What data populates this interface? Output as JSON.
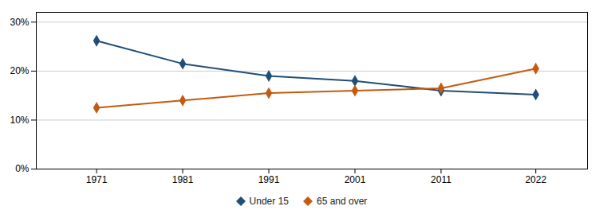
{
  "chart_data": {
    "type": "line",
    "x": [
      1971,
      1981,
      1991,
      2001,
      2011,
      2022
    ],
    "series": [
      {
        "name": "Under 15",
        "color": "#1f4e79",
        "marker": "diamond",
        "values": [
          0.262,
          0.215,
          0.19,
          0.18,
          0.16,
          0.152
        ]
      },
      {
        "name": "65 and over",
        "color": "#c55a11",
        "marker": "diamond",
        "values": [
          0.125,
          0.14,
          0.155,
          0.16,
          0.165,
          0.205
        ]
      }
    ],
    "xlim": [
      1964,
      2028
    ],
    "xticks": [
      1971,
      1981,
      1991,
      2001,
      2011,
      2022
    ],
    "ylim": [
      0,
      0.32
    ],
    "yticks": [
      {
        "value": 0.0,
        "label": "0%"
      },
      {
        "value": 0.1,
        "label": "10%"
      },
      {
        "value": 0.2,
        "label": "20%"
      },
      {
        "value": 0.3,
        "label": "30%"
      }
    ],
    "grid": "y",
    "legend": "bottom"
  }
}
